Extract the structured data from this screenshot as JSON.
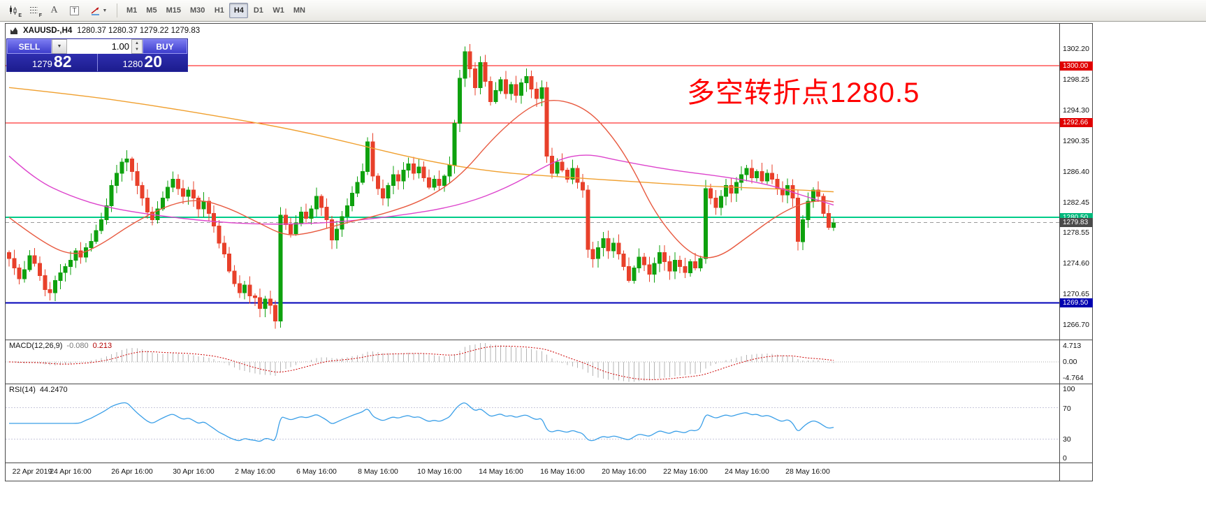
{
  "toolbar": {
    "timeframes": [
      "M1",
      "M5",
      "M15",
      "M30",
      "H1",
      "H4",
      "D1",
      "W1",
      "MN"
    ],
    "active_timeframe": "H4",
    "letters": {
      "e": "E",
      "f": "F",
      "a": "A",
      "t": "T"
    }
  },
  "chart": {
    "symbol_info": {
      "symbol": "XAUUSD-,H4",
      "ohlc": "1280.37 1280.37 1279.22 1279.83"
    },
    "annotation": {
      "text": "多空转折点1280.5",
      "color": "#ff0000"
    },
    "trade_panel": {
      "sell_label": "SELL",
      "buy_label": "BUY",
      "volume": "1.00",
      "sell_main": "1279",
      "sell_pips": "82",
      "buy_main": "1280",
      "buy_pips": "20"
    }
  },
  "macd": {
    "name": "MACD(12,26,9)",
    "value_main": "-0.080",
    "value_signal": "0.213",
    "axis_top": "4.713",
    "axis_zero": "0.00",
    "axis_bottom": "-4.764",
    "periods": {
      "fast": 12,
      "slow": 26,
      "signal": 9
    },
    "histogram_color": "#b4b4b4",
    "signal_color": "#cc0000"
  },
  "rsi": {
    "name": "RSI(14)",
    "value": "44.2470",
    "period": 14,
    "axis": [
      "100",
      "70",
      "30",
      "0"
    ],
    "levels": [
      70,
      30
    ],
    "line_color": "#3a9fe8"
  },
  "time_axis": [
    {
      "label": "22 Apr 2019",
      "i": 1
    },
    {
      "label": "24 Apr 16:00",
      "i": 12
    },
    {
      "label": "26 Apr 16:00",
      "i": 24
    },
    {
      "label": "30 Apr 16:00",
      "i": 36
    },
    {
      "label": "2 May 16:00",
      "i": 48
    },
    {
      "label": "6 May 16:00",
      "i": 60
    },
    {
      "label": "8 May 16:00",
      "i": 72
    },
    {
      "label": "10 May 16:00",
      "i": 84
    },
    {
      "label": "14 May 16:00",
      "i": 96
    },
    {
      "label": "16 May 16:00",
      "i": 108
    },
    {
      "label": "20 May 16:00",
      "i": 120
    },
    {
      "label": "22 May 16:00",
      "i": 132
    },
    {
      "label": "24 May 16:00",
      "i": 144
    },
    {
      "label": "28 May 16:00",
      "i": 156
    }
  ],
  "chart_data": {
    "type": "candlestick",
    "symbol": "XAUUSD-",
    "timeframe": "H4",
    "up_color": "#0ea10e",
    "down_color": "#e8402a",
    "price_range": [
      1264.8,
      1305.4
    ],
    "price_axis_ticks": [
      1302.2,
      1298.25,
      1294.3,
      1290.35,
      1286.4,
      1282.45,
      1278.55,
      1274.6,
      1270.65,
      1266.7
    ],
    "hlines": [
      {
        "price": 1300.0,
        "color": "#ff0000",
        "width": 1,
        "tag": "1300.00",
        "tag_bg": "#e00000"
      },
      {
        "price": 1292.66,
        "color": "#ff0000",
        "width": 1,
        "tag": "1292.66",
        "tag_bg": "#e00000"
      },
      {
        "price": 1280.5,
        "color": "#00cc88",
        "width": 2,
        "tag": "1280.50",
        "tag_bg": "#00b97c"
      },
      {
        "price": 1279.83,
        "color": "#9a9a9a",
        "width": 1,
        "dashed": true,
        "tag": "1279.83",
        "tag_bg": "#4a4a4a"
      },
      {
        "price": 1269.5,
        "color": "#0000b8",
        "width": 2,
        "tag": "1269.50",
        "tag_bg": "#0000b0"
      }
    ],
    "closes": [
      1275.2,
      1274.0,
      1272.6,
      1273.8,
      1275.6,
      1274.6,
      1273.0,
      1271.2,
      1270.8,
      1272.4,
      1273.4,
      1274.2,
      1275.0,
      1276.2,
      1275.4,
      1276.6,
      1277.4,
      1278.8,
      1280.2,
      1282.0,
      1284.6,
      1286.2,
      1287.6,
      1288.0,
      1286.4,
      1284.6,
      1283.0,
      1281.2,
      1280.2,
      1281.6,
      1283.0,
      1284.4,
      1285.4,
      1284.2,
      1283.2,
      1284.0,
      1283.0,
      1281.6,
      1282.6,
      1281.0,
      1279.4,
      1277.2,
      1275.8,
      1273.6,
      1272.0,
      1270.8,
      1271.8,
      1270.4,
      1270.2,
      1268.8,
      1270.0,
      1269.2,
      1267.2,
      1280.8,
      1279.6,
      1278.4,
      1279.8,
      1281.2,
      1280.4,
      1281.6,
      1283.2,
      1281.8,
      1280.2,
      1277.6,
      1279.0,
      1280.6,
      1282.0,
      1283.6,
      1285.0,
      1286.4,
      1290.2,
      1285.8,
      1284.2,
      1283.0,
      1284.6,
      1286.0,
      1285.2,
      1286.6,
      1287.4,
      1286.2,
      1287.0,
      1285.6,
      1284.4,
      1285.4,
      1284.6,
      1285.8,
      1287.2,
      1292.6,
      1298.4,
      1301.8,
      1299.6,
      1297.2,
      1300.4,
      1298.0,
      1295.4,
      1296.8,
      1298.2,
      1296.4,
      1297.6,
      1296.2,
      1297.8,
      1298.6,
      1297.0,
      1295.8,
      1297.2,
      1288.4,
      1286.2,
      1287.6,
      1286.6,
      1285.4,
      1286.8,
      1285.0,
      1284.0,
      1276.4,
      1275.2,
      1276.6,
      1277.8,
      1276.2,
      1277.2,
      1275.8,
      1274.2,
      1272.4,
      1274.0,
      1275.4,
      1274.4,
      1273.2,
      1274.6,
      1276.0,
      1274.8,
      1273.6,
      1275.0,
      1274.2,
      1273.4,
      1274.8,
      1274.0,
      1275.2,
      1284.2,
      1283.0,
      1281.8,
      1283.2,
      1284.6,
      1283.6,
      1285.0,
      1286.0,
      1286.8,
      1285.6,
      1286.4,
      1285.2,
      1286.2,
      1285.4,
      1284.2,
      1283.4,
      1284.6,
      1283.0,
      1277.4,
      1280.2,
      1282.6,
      1284.0,
      1283.2,
      1281.0,
      1279.2,
      1279.8
    ],
    "ma_lines": [
      {
        "name": "MA-slow-orange",
        "color": "#f0a030",
        "points": [
          [
            0,
            1297.2
          ],
          [
            14,
            1296.2
          ],
          [
            27,
            1295.0
          ],
          [
            40,
            1293.6
          ],
          [
            54,
            1292.0
          ],
          [
            66,
            1290.2
          ],
          [
            81,
            1287.8
          ],
          [
            95,
            1286.3
          ],
          [
            108,
            1285.7
          ],
          [
            122,
            1285.1
          ],
          [
            136,
            1284.5
          ],
          [
            149,
            1284.2
          ],
          [
            161,
            1283.8
          ]
        ]
      },
      {
        "name": "MA-medium-magenta",
        "color": "#dd44cc",
        "points": [
          [
            0,
            1288.4
          ],
          [
            5,
            1285.4
          ],
          [
            12,
            1283.2
          ],
          [
            20,
            1281.6
          ],
          [
            34,
            1280.3
          ],
          [
            47,
            1279.6
          ],
          [
            61,
            1279.7
          ],
          [
            75,
            1280.6
          ],
          [
            88,
            1282.0
          ],
          [
            98,
            1284.5
          ],
          [
            107,
            1288.0
          ],
          [
            113,
            1288.7
          ],
          [
            119,
            1287.8
          ],
          [
            129,
            1286.6
          ],
          [
            139,
            1285.8
          ],
          [
            148,
            1284.8
          ],
          [
            155,
            1283.3
          ],
          [
            161,
            1282.1
          ]
        ]
      },
      {
        "name": "MA-fast-red",
        "color": "#e85a40",
        "points": [
          [
            0,
            1280.5
          ],
          [
            7,
            1277.0
          ],
          [
            13,
            1275.5
          ],
          [
            18,
            1277.0
          ],
          [
            24,
            1279.7
          ],
          [
            31,
            1282.1
          ],
          [
            37,
            1282.9
          ],
          [
            43,
            1281.7
          ],
          [
            49,
            1279.7
          ],
          [
            54,
            1278.1
          ],
          [
            59,
            1278.5
          ],
          [
            65,
            1279.7
          ],
          [
            73,
            1280.9
          ],
          [
            81,
            1282.7
          ],
          [
            88,
            1285.7
          ],
          [
            95,
            1291.1
          ],
          [
            102,
            1295.0
          ],
          [
            107,
            1295.8
          ],
          [
            113,
            1294.4
          ],
          [
            118,
            1290.8
          ],
          [
            122,
            1286.6
          ],
          [
            126,
            1281.2
          ],
          [
            131,
            1277.0
          ],
          [
            135,
            1275.2
          ],
          [
            139,
            1275.5
          ],
          [
            144,
            1277.9
          ],
          [
            150,
            1280.8
          ],
          [
            155,
            1282.4
          ],
          [
            159,
            1282.7
          ],
          [
            161,
            1282.5
          ]
        ]
      }
    ]
  }
}
